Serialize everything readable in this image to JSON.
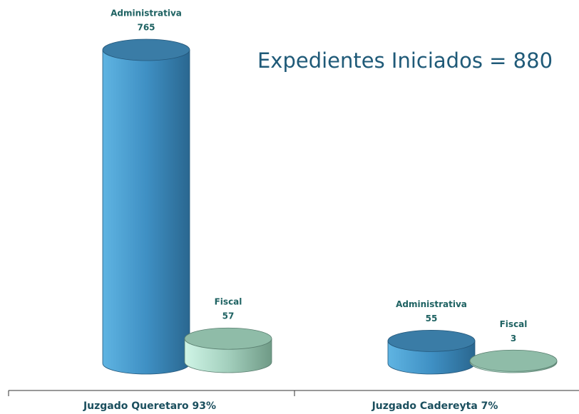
{
  "chart_data": {
    "type": "cylinder-bar",
    "title": "Expedientes Iniciados = 880",
    "categories": [
      "Juzgado Queretaro 93%",
      "Juzgado Cadereyta 7%"
    ],
    "series": [
      {
        "name": "Administrativa",
        "color": "#3f90c4",
        "values": [
          765,
          55
        ]
      },
      {
        "name": "Fiscal",
        "color": "#9fd6c2",
        "values": [
          57,
          3
        ]
      }
    ]
  }
}
